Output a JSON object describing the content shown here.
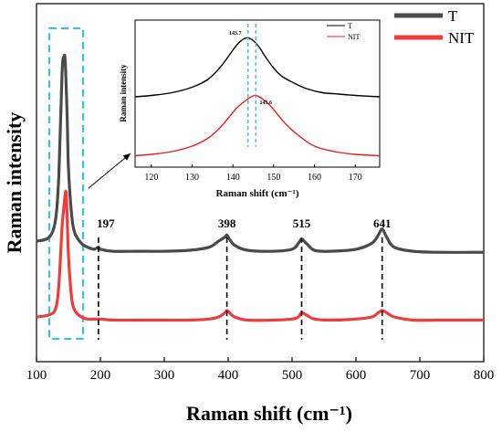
{
  "colors": {
    "T": "#4a4a4a",
    "NIT": "#ee3b3b",
    "highlight": "#3fbfd8",
    "marker": "#000000"
  },
  "chart_data": [
    {
      "type": "line",
      "title": "",
      "xlabel": "Raman shift (cm⁻¹)",
      "ylabel": "Raman intensity",
      "xlim": [
        100,
        800
      ],
      "xticks": [
        100,
        200,
        300,
        400,
        500,
        600,
        700,
        800
      ],
      "yticks": [],
      "legend_position": "top-right",
      "series": [
        {
          "name": "T",
          "color": "#4a4a4a",
          "x": [
            100,
            120,
            130,
            135,
            140,
            143,
            145,
            148,
            150,
            155,
            160,
            170,
            180,
            190,
            197,
            200,
            220,
            260,
            300,
            340,
            370,
            385,
            395,
            398,
            402,
            410,
            430,
            470,
            500,
            510,
            515,
            522,
            535,
            560,
            600,
            625,
            635,
            641,
            648,
            660,
            690,
            730,
            800
          ],
          "y": [
            0.09,
            0.11,
            0.2,
            0.42,
            0.92,
            1.0,
            0.97,
            0.7,
            0.45,
            0.22,
            0.13,
            0.08,
            0.06,
            0.05,
            0.06,
            0.05,
            0.04,
            0.04,
            0.04,
            0.045,
            0.06,
            0.09,
            0.11,
            0.12,
            0.1,
            0.07,
            0.045,
            0.04,
            0.05,
            0.08,
            0.1,
            0.08,
            0.045,
            0.04,
            0.05,
            0.08,
            0.12,
            0.15,
            0.11,
            0.06,
            0.04,
            0.035,
            0.035
          ]
        },
        {
          "name": "NIT",
          "color": "#ee3b3b",
          "x": [
            100,
            120,
            130,
            135,
            140,
            143,
            146,
            148,
            150,
            155,
            160,
            170,
            180,
            190,
            197,
            200,
            220,
            260,
            300,
            340,
            370,
            385,
            395,
            398,
            402,
            410,
            430,
            470,
            500,
            510,
            515,
            522,
            535,
            560,
            600,
            625,
            635,
            641,
            648,
            660,
            690,
            730,
            800
          ],
          "y": [
            0.03,
            0.04,
            0.07,
            0.18,
            0.45,
            0.55,
            0.62,
            0.5,
            0.32,
            0.12,
            0.06,
            0.03,
            0.02,
            0.02,
            0.02,
            0.02,
            0.015,
            0.015,
            0.015,
            0.015,
            0.02,
            0.03,
            0.05,
            0.06,
            0.05,
            0.03,
            0.015,
            0.015,
            0.02,
            0.03,
            0.05,
            0.04,
            0.02,
            0.015,
            0.02,
            0.03,
            0.05,
            0.06,
            0.05,
            0.03,
            0.015,
            0.015,
            0.015
          ]
        }
      ],
      "annotations": [
        {
          "label": "197",
          "x": 197
        },
        {
          "label": "398",
          "x": 398
        },
        {
          "label": "515",
          "x": 515
        },
        {
          "label": "641",
          "x": 641
        }
      ]
    },
    {
      "type": "line",
      "title": "",
      "xlabel": "Raman shift (cm⁻¹)",
      "ylabel": "Raman intensity",
      "xlim": [
        116,
        176
      ],
      "xticks": [
        120,
        130,
        140,
        150,
        160,
        170
      ],
      "yticks": [],
      "legend_position": "top-right",
      "series": [
        {
          "name": "T",
          "color": "#000000",
          "x": [
            116,
            120,
            125,
            130,
            134,
            137,
            139,
            141,
            142.5,
            143.7,
            145,
            146.5,
            148,
            150,
            152,
            155,
            158,
            162,
            166,
            170,
            176
          ],
          "y": [
            0.46,
            0.47,
            0.49,
            0.53,
            0.59,
            0.68,
            0.76,
            0.84,
            0.88,
            0.89,
            0.87,
            0.82,
            0.75,
            0.67,
            0.61,
            0.56,
            0.52,
            0.49,
            0.48,
            0.47,
            0.46
          ]
        },
        {
          "name": "NIT",
          "color": "#ee1c1c",
          "x": [
            116,
            120,
            125,
            130,
            134,
            137,
            139,
            141,
            143,
            144.5,
            145.6,
            147,
            149,
            151,
            153,
            156,
            160,
            165,
            170,
            176
          ],
          "y": [
            0.03,
            0.04,
            0.06,
            0.1,
            0.16,
            0.24,
            0.31,
            0.38,
            0.43,
            0.46,
            0.47,
            0.45,
            0.4,
            0.33,
            0.26,
            0.18,
            0.1,
            0.06,
            0.04,
            0.03
          ]
        }
      ],
      "peak_labels": [
        {
          "label": "143.7",
          "x": 143.7
        },
        {
          "label": "145.6",
          "x": 145.6
        }
      ]
    }
  ]
}
